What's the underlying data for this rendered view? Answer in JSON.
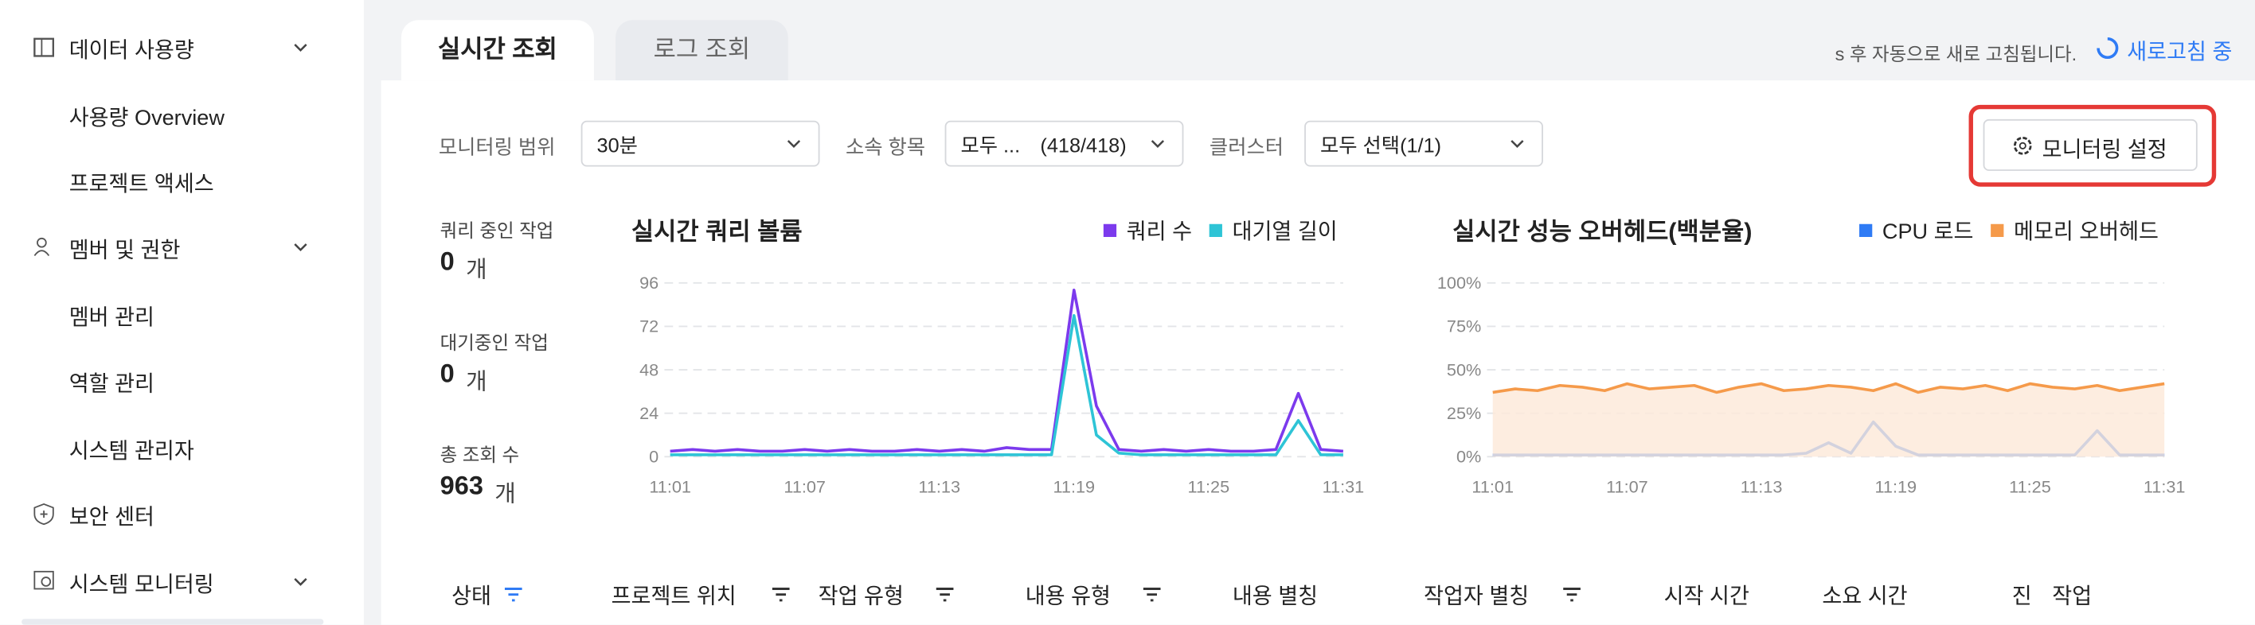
{
  "sidebar": {
    "items": [
      "데이터 사용량",
      "사용량 Overview",
      "프로젝트 액세스",
      "멤버 및 권한",
      "멤버 관리",
      "역할 관리",
      "시스템 관리자",
      "보안 센터",
      "시스템 모니터링"
    ]
  },
  "tabs": [
    "실시간 조회",
    "로그 조회"
  ],
  "refresh": {
    "notice": "s 후 자동으로 새로 고침됩니다.",
    "status": "새로고침 중"
  },
  "filters": {
    "range_label": "모니터링 범위",
    "range_value": "30분",
    "scope_label": "소속 항목",
    "scope_value": "모두 ...",
    "scope_count": "(418/418)",
    "cluster_label": "클러스터",
    "cluster_value": "모두 선택(1/1)",
    "settings_button": "모니터링 설정"
  },
  "stats": [
    {
      "label": "쿼리 중인 작업",
      "value": 0,
      "unit": "개"
    },
    {
      "label": "대기중인 작업",
      "value": 0,
      "unit": "개"
    },
    {
      "label": "총 조회 수",
      "value": 963,
      "unit": "개"
    }
  ],
  "table": {
    "headers": [
      "상태",
      "프로젝트 위치",
      "작업 유형",
      "내용 유형",
      "내용 별칭",
      "작업자 별칭",
      "시작 시간",
      "소요 시간",
      "진",
      "작업"
    ]
  },
  "chart_data": [
    {
      "type": "line",
      "title": "실시간 쿼리 볼륨",
      "categories": [
        "11:01",
        null,
        null,
        null,
        null,
        null,
        "11:07",
        null,
        null,
        null,
        null,
        null,
        "11:13",
        null,
        null,
        null,
        null,
        null,
        "11:19",
        null,
        null,
        null,
        null,
        null,
        "11:25",
        null,
        null,
        null,
        null,
        null,
        "11:31"
      ],
      "series": [
        {
          "name": "쿼리 수",
          "color": "#7c3aed",
          "values": [
            3,
            4,
            3,
            4,
            3,
            3,
            4,
            3,
            4,
            3,
            3,
            4,
            3,
            4,
            3,
            5,
            4,
            4,
            92,
            28,
            4,
            3,
            4,
            3,
            4,
            3,
            3,
            4,
            35,
            4,
            3
          ]
        },
        {
          "name": "대기열 길이",
          "color": "#2ec4d6",
          "values": [
            1,
            1,
            1,
            1,
            1,
            1,
            1,
            1,
            1,
            1,
            1,
            1,
            1,
            1,
            1,
            1,
            1,
            1,
            78,
            12,
            2,
            1,
            1,
            1,
            1,
            1,
            1,
            1,
            20,
            1,
            1
          ]
        }
      ],
      "ylim": [
        0,
        96
      ],
      "yticks": [
        0,
        24,
        48,
        72,
        96
      ],
      "grid": true
    },
    {
      "type": "line",
      "title": "실시간 성능 오버헤드(백분율)",
      "categories": [
        "11:01",
        null,
        null,
        null,
        null,
        null,
        "11:07",
        null,
        null,
        null,
        null,
        null,
        "11:13",
        null,
        null,
        null,
        null,
        null,
        "11:19",
        null,
        null,
        null,
        null,
        null,
        "11:25",
        null,
        null,
        null,
        null,
        null,
        "11:31"
      ],
      "series": [
        {
          "name": "CPU 로드",
          "color": "#2f7bf5",
          "values": [
            1,
            1,
            1,
            1,
            1,
            1,
            1,
            1,
            1,
            1,
            1,
            1,
            1,
            1,
            2,
            8,
            2,
            20,
            6,
            1,
            1,
            1,
            1,
            1,
            1,
            1,
            1,
            15,
            1,
            1,
            1
          ]
        },
        {
          "name": "메모리 오버헤드",
          "color": "#f59a4a",
          "fill": "#fde8d8",
          "values": [
            37,
            39,
            38,
            41,
            40,
            38,
            42,
            39,
            40,
            41,
            37,
            40,
            42,
            38,
            39,
            41,
            40,
            38,
            42,
            37,
            40,
            39,
            41,
            38,
            42,
            40,
            39,
            41,
            38,
            40,
            42
          ]
        }
      ],
      "ylim": [
        0,
        100
      ],
      "yticks": [
        {
          "value": 0,
          "label": "0%"
        },
        {
          "value": 25,
          "label": "25%"
        },
        {
          "value": 50,
          "label": "50%"
        },
        {
          "value": 75,
          "label": "75%"
        },
        {
          "value": 100,
          "label": "100%"
        }
      ],
      "grid": true
    }
  ]
}
